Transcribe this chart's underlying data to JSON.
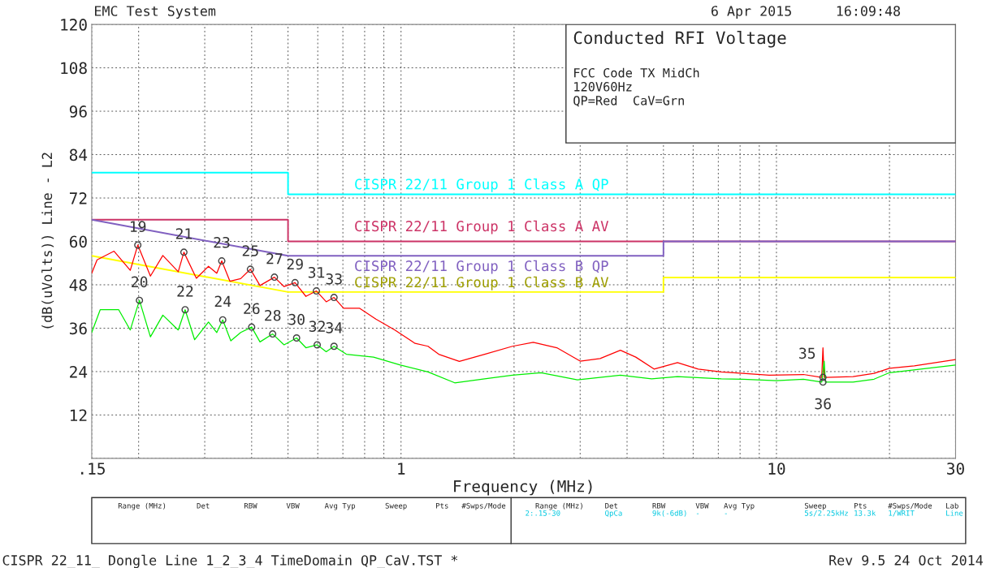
{
  "chart_data": {
    "type": "line",
    "title": "Conducted RFI Voltage",
    "xlabel": "Frequency (MHz)",
    "ylabel": "(dB(uVolts)) Line - L2",
    "log": "x",
    "xlim": [
      0.15,
      30
    ],
    "ylim": [
      0,
      120
    ],
    "grid": true,
    "legend": false,
    "xticks": [
      {
        "value": 0.15,
        "label": ".15"
      },
      {
        "value": 0.2,
        "label": null
      },
      {
        "value": 0.3,
        "label": null
      },
      {
        "value": 0.4,
        "label": null
      },
      {
        "value": 0.5,
        "label": null
      },
      {
        "value": 0.6,
        "label": null
      },
      {
        "value": 0.7,
        "label": null
      },
      {
        "value": 0.8,
        "label": null
      },
      {
        "value": 0.9,
        "label": null
      },
      1,
      {
        "value": 2,
        "label": null
      },
      {
        "value": 3,
        "label": null
      },
      {
        "value": 4,
        "label": null
      },
      {
        "value": 5,
        "label": null
      },
      {
        "value": 6,
        "label": null
      },
      {
        "value": 7,
        "label": null
      },
      {
        "value": 8,
        "label": null
      },
      {
        "value": 9,
        "label": null
      },
      10,
      {
        "value": 20,
        "label": null
      },
      30
    ],
    "yticks": [
      {
        "value": 0,
        "label": null
      },
      12,
      24,
      36,
      48,
      60,
      72,
      84,
      96,
      108,
      120
    ],
    "series": [
      {
        "name": "CISPR 22/11 Group 1 Class A QP",
        "color": "#00ffff",
        "x": [
          0.15,
          0.5,
          0.5,
          30
        ],
        "values": [
          79,
          79,
          73,
          73
        ]
      },
      {
        "name": "CISPR 22/11 Group 1 Class A AV",
        "color": "#cc3366",
        "x": [
          0.15,
          0.5,
          0.5,
          30
        ],
        "values": [
          66,
          66,
          60,
          60
        ]
      },
      {
        "name": "CISPR 22/11 Group 1 Class B QP",
        "color": "#8060c0",
        "x": [
          0.15,
          0.5,
          5,
          5,
          30
        ],
        "values": [
          66,
          56,
          56,
          60,
          60
        ]
      },
      {
        "name": "CISPR 22/11 Group 1 Class B AV",
        "color": "#ffff00",
        "x": [
          0.15,
          0.5,
          5,
          5,
          30
        ],
        "values": [
          56,
          46,
          46,
          50,
          50
        ]
      },
      {
        "color": "#ff0000",
        "x": [
          0.15,
          0.155,
          0.172,
          0.19,
          0.199,
          0.215,
          0.232,
          0.255,
          0.264,
          0.285,
          0.307,
          0.323,
          0.333,
          0.35,
          0.374,
          0.397,
          0.421,
          0.46,
          0.488,
          0.522,
          0.558,
          0.595,
          0.632,
          0.663,
          0.703,
          0.776,
          0.857,
          0.963,
          1.09,
          1.18,
          1.26,
          1.43,
          1.67,
          1.98,
          2.25,
          2.6,
          3.0,
          3.39,
          3.84,
          4.22,
          4.72,
          5.45,
          6.19,
          7.13,
          8.14,
          9.56,
          11.8,
          13.2,
          13.3,
          13.4,
          16.0,
          18.2,
          20.0,
          23.3,
          30
        ],
        "values": [
          51.2,
          54.9,
          57.3,
          52.0,
          59.0,
          50.4,
          56.1,
          51.6,
          57.0,
          49.8,
          53.1,
          51.2,
          54.6,
          49.0,
          49.7,
          52.3,
          47.8,
          50.1,
          47.5,
          48.6,
          44.8,
          46.3,
          43.3,
          44.5,
          41.5,
          41.5,
          38.5,
          35.5,
          31.8,
          31.0,
          28.8,
          26.8,
          28.8,
          31.0,
          32.1,
          30.6,
          26.9,
          27.6,
          29.9,
          28.0,
          24.7,
          26.5,
          24.7,
          23.9,
          23.5,
          23.0,
          23.2,
          22.4,
          30.6,
          22.4,
          22.6,
          23.5,
          24.9,
          25.6,
          27.3
        ]
      },
      {
        "color": "#00ee00",
        "x": [
          0.15,
          0.158,
          0.177,
          0.19,
          0.201,
          0.215,
          0.232,
          0.255,
          0.266,
          0.282,
          0.307,
          0.323,
          0.335,
          0.352,
          0.374,
          0.4,
          0.421,
          0.455,
          0.488,
          0.527,
          0.558,
          0.598,
          0.632,
          0.663,
          0.715,
          0.845,
          0.996,
          1.18,
          1.39,
          1.67,
          1.98,
          2.36,
          2.95,
          3.84,
          4.65,
          5.45,
          7.13,
          8.14,
          10.0,
          11.8,
          13.2,
          13.4,
          13.5,
          16.0,
          18.2,
          20.0,
          30
        ],
        "values": [
          34.8,
          41.1,
          41.1,
          35.5,
          43.7,
          33.6,
          39.6,
          35.5,
          41.1,
          32.8,
          37.7,
          34.8,
          38.3,
          32.5,
          34.8,
          36.3,
          32.2,
          34.4,
          31.4,
          33.3,
          30.6,
          31.4,
          29.5,
          31.0,
          28.8,
          28.0,
          25.8,
          23.9,
          20.9,
          22.0,
          23.0,
          23.7,
          21.7,
          23.0,
          22.0,
          22.6,
          22.0,
          21.9,
          21.5,
          21.9,
          21.1,
          26.9,
          21.1,
          21.1,
          21.9,
          23.7,
          25.8
        ]
      },
      {
        "type": "scatter",
        "marker": "circle",
        "color": "#404040",
        "x": [
          0.199,
          0.201,
          0.264,
          0.266,
          0.333,
          0.335,
          0.397,
          0.4,
          0.46,
          0.455,
          0.522,
          0.527,
          0.595,
          0.598,
          0.663,
          0.663,
          13.3,
          13.3
        ],
        "values": [
          59.0,
          43.7,
          57.0,
          41.1,
          54.6,
          38.3,
          52.3,
          36.3,
          50.1,
          34.4,
          48.6,
          33.3,
          46.3,
          31.4,
          44.5,
          31.0,
          22.4,
          21.1
        ]
      }
    ],
    "annotations": [
      "EMC Test System",
      "6 Apr 2015",
      "16:09:48",
      "FCC Code TX MidCh",
      "120V60Hz",
      "QP=Red  CaV=Grn",
      "CISPR 22_11_ Dongle Line 1_2_3_4 TimeDomain QP_CaV.TST *",
      "Rev 9.5 24 Oct 2014",
      "Range (MHz)",
      "Det",
      "RBW",
      "VBW",
      "Avg Typ",
      "Sweep",
      "Pts",
      "#Swps/Mode",
      "Range (MHz)",
      "Det",
      "RBW",
      "VBW",
      "Avg Typ",
      "Sweep",
      "Pts",
      "#Swps/Mode",
      "Lab",
      "2:.15-30",
      "QpCa",
      "9k(-6dB)",
      "-",
      "-",
      "5s/2.25kHz",
      "13.3k",
      "1/WRIT",
      "Line",
      {
        "text": "19",
        "x": 0.199,
        "y": 59.0
      },
      {
        "text": "20",
        "x": 0.201,
        "y": 43.7
      },
      {
        "text": "21",
        "x": 0.264,
        "y": 57.0
      },
      {
        "text": "22",
        "x": 0.266,
        "y": 41.1
      },
      {
        "text": "23",
        "x": 0.333,
        "y": 54.6
      },
      {
        "text": "24",
        "x": 0.335,
        "y": 38.3
      },
      {
        "text": "25",
        "x": 0.397,
        "y": 52.3
      },
      {
        "text": "26",
        "x": 0.4,
        "y": 36.3
      },
      {
        "text": "27",
        "x": 0.46,
        "y": 50.1
      },
      {
        "text": "28",
        "x": 0.455,
        "y": 34.4
      },
      {
        "text": "29",
        "x": 0.522,
        "y": 48.6
      },
      {
        "text": "30",
        "x": 0.527,
        "y": 33.3
      },
      {
        "text": "31",
        "x": 0.595,
        "y": 46.3
      },
      {
        "text": "32",
        "x": 0.598,
        "y": 31.4
      },
      {
        "text": "33",
        "x": 0.663,
        "y": 44.5
      },
      {
        "text": "34",
        "x": 0.663,
        "y": 31.0
      },
      {
        "text": "35",
        "x": 13.3,
        "y": 22.4
      },
      {
        "text": "36",
        "x": 13.3,
        "y": 21.1
      }
    ]
  }
}
